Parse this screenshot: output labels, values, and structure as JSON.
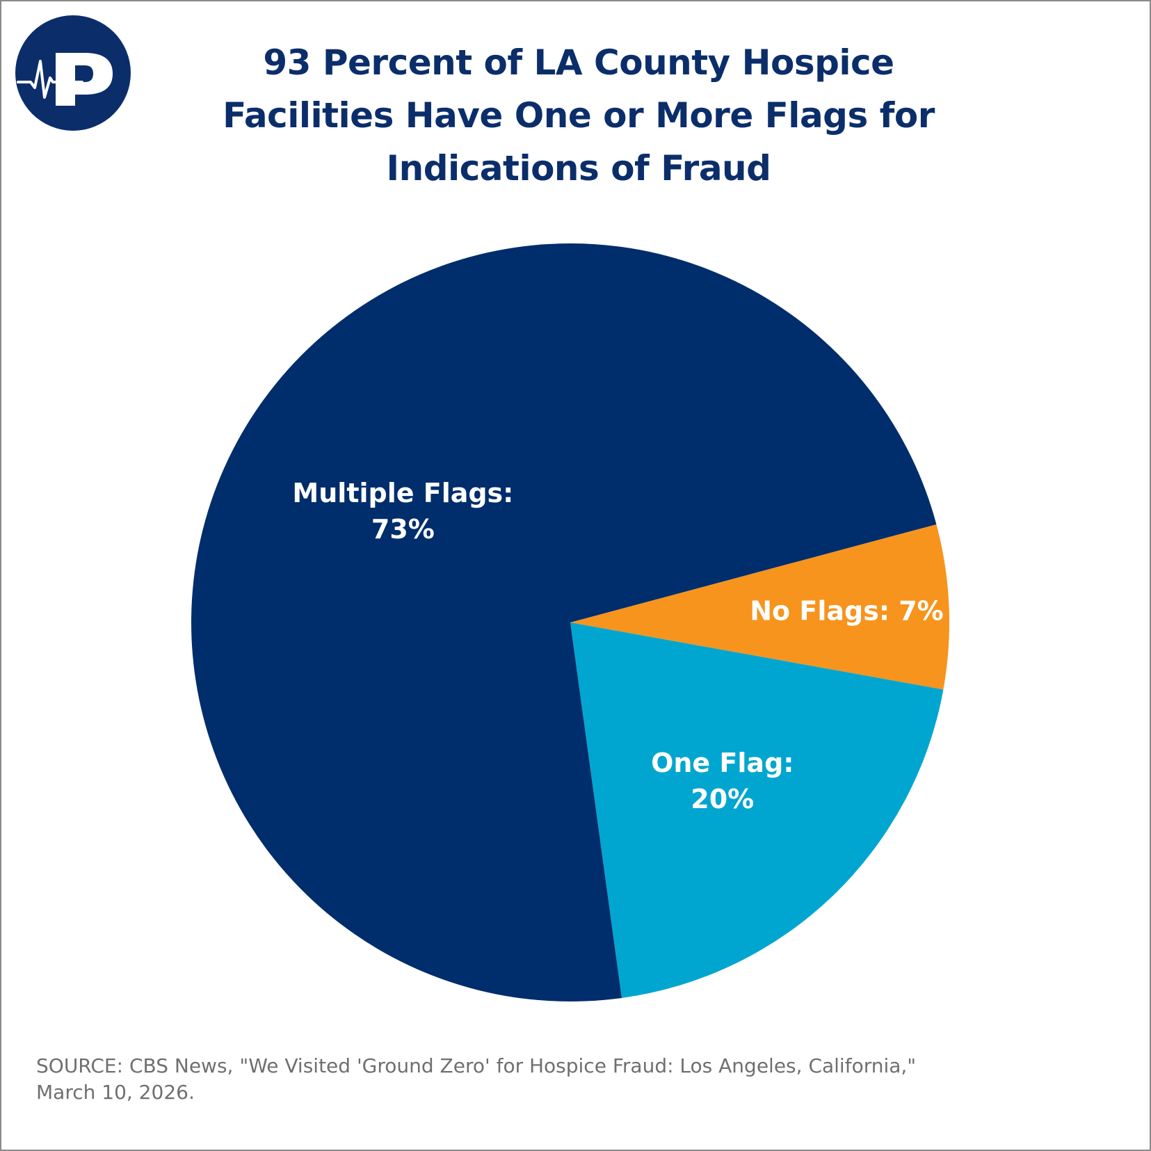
{
  "header": {
    "title_lines": [
      "93 Percent of LA County Hospice",
      "Facilities Have One or More Flags for",
      "Indications of Fraud"
    ]
  },
  "brand": {
    "logo_icon": "heartbeat-p-logo",
    "primary_color": "#002d6b"
  },
  "chart_data": {
    "type": "pie",
    "title": "93 Percent of LA County Hospice Facilities Have One or More Flags for Indications of Fraud",
    "start_angle_deg": 75,
    "direction": "clockwise",
    "slices": [
      {
        "label": "No Flags: 7%",
        "label_lines": [
          "No Flags: 7%"
        ],
        "value": 7,
        "color": "#f7941d"
      },
      {
        "label": "One Flag: 20%",
        "label_lines": [
          "One Flag:",
          "20%"
        ],
        "value": 20,
        "color": "#00a6d0"
      },
      {
        "label": "Multiple Flags: 73%",
        "label_lines": [
          "Multiple Flags:",
          "73%"
        ],
        "value": 73,
        "color": "#002d6b"
      }
    ]
  },
  "footer": {
    "source_lines": [
      "SOURCE: CBS News, \"We Visited 'Ground Zero' for Hospice Fraud: Los Angeles, California,\"",
      "March 10, 2026."
    ]
  }
}
